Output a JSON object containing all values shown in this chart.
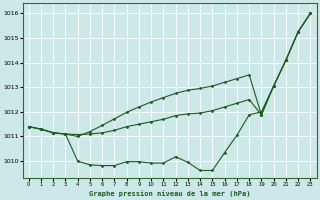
{
  "title": "Graphe pression niveau de la mer (hPa)",
  "background_color": "#cde8e8",
  "grid_color": "#ffffff",
  "line_color": "#1a5c1a",
  "xlim": [
    -0.5,
    23.5
  ],
  "ylim": [
    1009.3,
    1016.4
  ],
  "yticks": [
    1010,
    1011,
    1012,
    1013,
    1014,
    1015,
    1016
  ],
  "xticks": [
    0,
    1,
    2,
    3,
    4,
    5,
    6,
    7,
    8,
    9,
    10,
    11,
    12,
    13,
    14,
    15,
    16,
    17,
    18,
    19,
    20,
    21,
    22,
    23
  ],
  "line1": [
    1011.4,
    1011.3,
    1011.15,
    1011.1,
    1010.0,
    1009.85,
    1009.82,
    1009.82,
    1009.98,
    1009.98,
    1009.92,
    1009.92,
    1010.18,
    1009.95,
    1009.62,
    1009.62,
    1010.35,
    1011.05,
    1011.88,
    1012.0,
    1013.05,
    1014.1,
    1015.25,
    1016.0
  ],
  "line2": [
    1011.4,
    1011.3,
    1011.15,
    1011.1,
    1011.08,
    1011.1,
    1011.15,
    1011.25,
    1011.4,
    1011.5,
    1011.6,
    1011.7,
    1011.85,
    1011.92,
    1011.95,
    1012.05,
    1012.2,
    1012.35,
    1012.5,
    1011.88,
    1013.05,
    1014.1,
    1015.25,
    1016.0
  ],
  "line3": [
    1011.4,
    1011.3,
    1011.15,
    1011.1,
    1011.0,
    1011.2,
    1011.45,
    1011.72,
    1011.98,
    1012.2,
    1012.4,
    1012.58,
    1012.75,
    1012.88,
    1012.95,
    1013.05,
    1013.2,
    1013.35,
    1013.5,
    1011.88,
    1013.05,
    1014.1,
    1015.25,
    1016.0
  ]
}
